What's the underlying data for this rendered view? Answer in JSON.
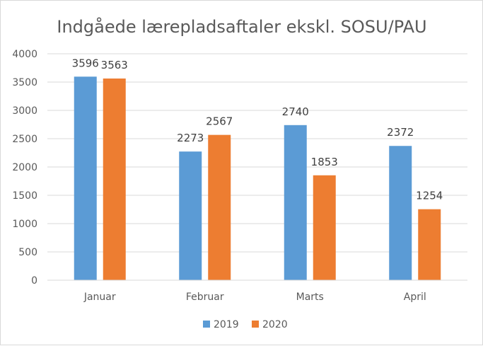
{
  "chart_data": {
    "type": "bar",
    "title": "Indgåede lærepladsaftaler ekskl. SOSU/PAU",
    "xlabel": "",
    "ylabel": "",
    "categories": [
      "Januar",
      "Februar",
      "Marts",
      "April"
    ],
    "series": [
      {
        "name": "2019",
        "values": [
          3596,
          2273,
          2740,
          2372
        ],
        "color": "#5b9bd5"
      },
      {
        "name": "2020",
        "values": [
          3563,
          2567,
          1853,
          1254
        ],
        "color": "#ed7d31"
      }
    ],
    "ylim": [
      0,
      4000
    ],
    "yticks": [
      "0",
      "500",
      "1000",
      "1500",
      "2000",
      "2500",
      "3000",
      "3500",
      "4000"
    ],
    "grid": true,
    "data_labels": true,
    "legend_position": "bottom"
  }
}
